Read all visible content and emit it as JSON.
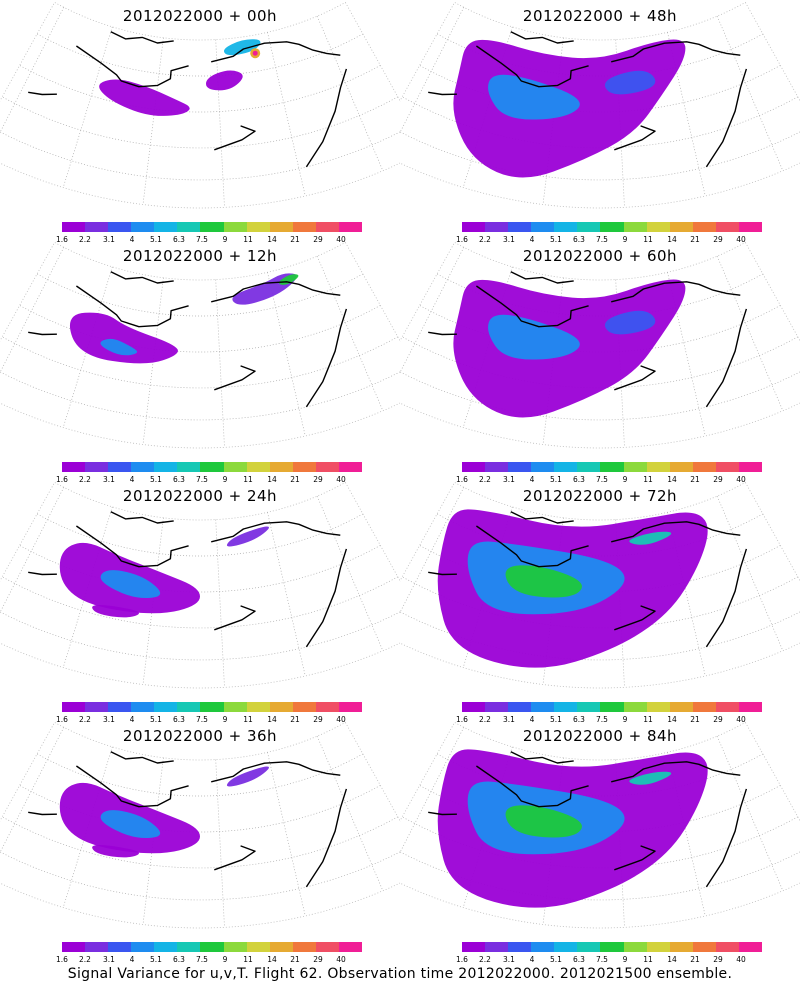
{
  "figure": {
    "footer": "Signal Variance for u,v,T. Flight 62. Observation time 2012022000. 2012021500 ensemble."
  },
  "colorscale": {
    "labels": [
      "1.6",
      "2.2",
      "3.1",
      "4",
      "5.1",
      "6.3",
      "7.5",
      "9",
      "11",
      "14",
      "21",
      "29",
      "40"
    ],
    "colors": [
      "#9b00d6",
      "#7a2ee0",
      "#3a56f0",
      "#1e8cf0",
      "#14b4e6",
      "#16c8b4",
      "#1ec83c",
      "#8cd93c",
      "#d2d23c",
      "#e6aa32",
      "#f0783c",
      "#f04e64",
      "#f01e96"
    ]
  },
  "chart_data": [
    {
      "type": "heatmap",
      "title": "2012022000 + 00h",
      "lead_hours": 0,
      "max_level": "40",
      "coverage": "small"
    },
    {
      "type": "heatmap",
      "title": "2012022000 + 12h",
      "lead_hours": 12,
      "max_level": "7.5",
      "coverage": "small-medium"
    },
    {
      "type": "heatmap",
      "title": "2012022000 + 24h",
      "lead_hours": 24,
      "max_level": "5.1",
      "coverage": "medium"
    },
    {
      "type": "heatmap",
      "title": "2012022000 + 36h",
      "lead_hours": 36,
      "max_level": "5.1",
      "coverage": "medium"
    },
    {
      "type": "heatmap",
      "title": "2012022000 + 48h",
      "lead_hours": 48,
      "max_level": "6.3",
      "coverage": "large"
    },
    {
      "type": "heatmap",
      "title": "2012022000 + 60h",
      "lead_hours": 60,
      "max_level": "7.5",
      "coverage": "large"
    },
    {
      "type": "heatmap",
      "title": "2012022000 + 72h",
      "lead_hours": 72,
      "max_level": "9",
      "coverage": "very large"
    },
    {
      "type": "heatmap",
      "title": "2012022000 + 84h",
      "lead_hours": 84,
      "max_level": "11",
      "coverage": "very large"
    }
  ]
}
